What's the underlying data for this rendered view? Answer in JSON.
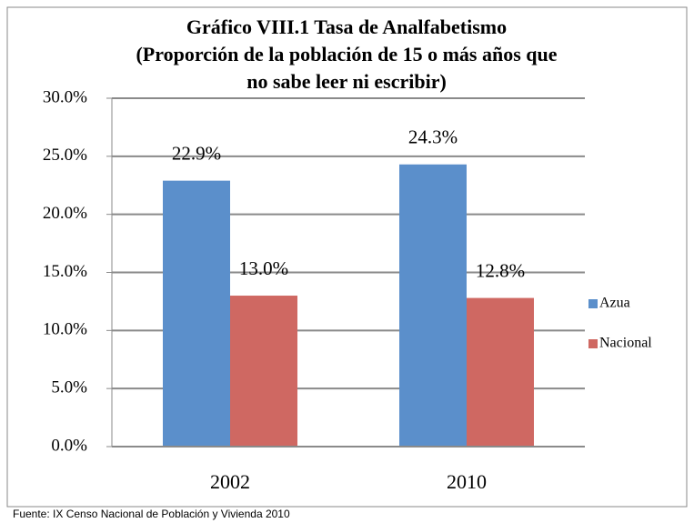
{
  "chart_data": {
    "type": "bar",
    "title": [
      "Gráfico VIII.1  Tasa de Analfabetismo",
      "(Proporción de la población de 15 o más años que",
      "no sabe leer ni escribir)"
    ],
    "categories": [
      "2002",
      "2010"
    ],
    "series": [
      {
        "name": "Azua",
        "color": "#5b8fcb",
        "values": [
          22.9,
          24.3
        ],
        "value_labels": [
          "22.9%",
          "24.3%"
        ]
      },
      {
        "name": "Nacional",
        "color": "#cf6862",
        "values": [
          13.0,
          12.8
        ],
        "value_labels": [
          "13.0%",
          "12.8%"
        ]
      }
    ],
    "ylim": [
      0,
      30
    ],
    "yticks": [
      {
        "value": 0,
        "label": "0.0%"
      },
      {
        "value": 5,
        "label": "5.0%"
      },
      {
        "value": 10,
        "label": "10.0%"
      },
      {
        "value": 15,
        "label": "15.0%"
      },
      {
        "value": 20,
        "label": "20.0%"
      },
      {
        "value": 25,
        "label": "25.0%"
      },
      {
        "value": 30,
        "label": "30.0%"
      }
    ],
    "grid": true,
    "legend": "right",
    "source": "Fuente: IX Censo Nacional de Población y Vivienda 2010"
  }
}
